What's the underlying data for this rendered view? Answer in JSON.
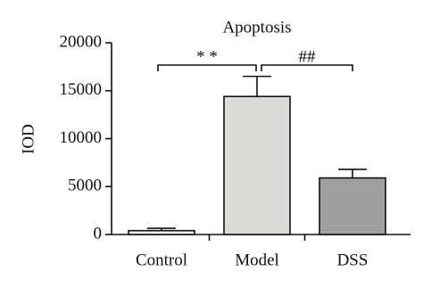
{
  "chart_data": {
    "type": "bar",
    "title": "Apoptosis",
    "y_label": "IOD",
    "categories": [
      "Control",
      "Model",
      "DSS"
    ],
    "values": [
      400,
      14400,
      5900
    ],
    "errors": [
      250,
      2100,
      900
    ],
    "colors": [
      "#f4f3f0",
      "#dddbd7",
      "#a19f9e"
    ],
    "ylim": [
      0,
      20000
    ],
    "yticks": [
      0,
      5000,
      10000,
      15000,
      20000
    ],
    "annotations": [
      "* *",
      "##"
    ]
  }
}
